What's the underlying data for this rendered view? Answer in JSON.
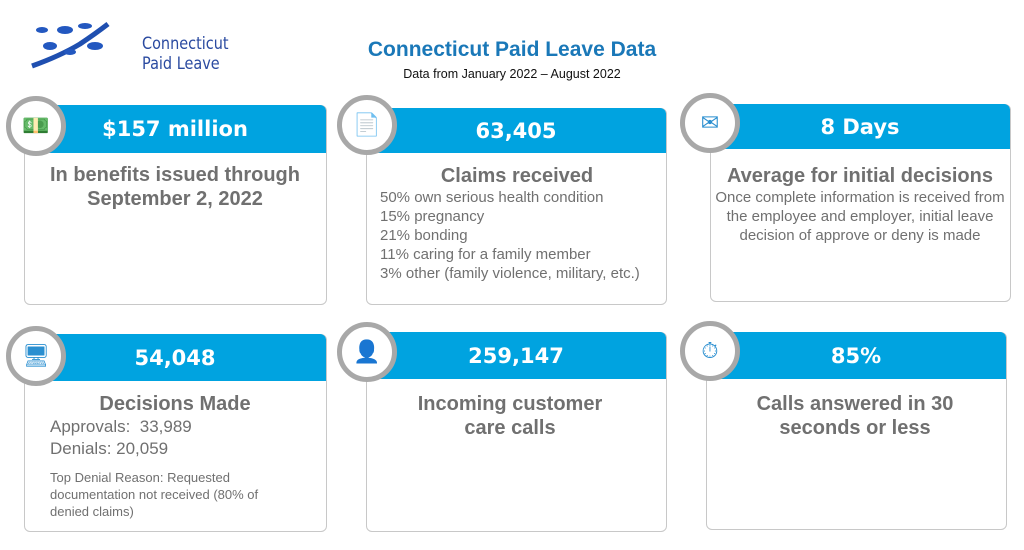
{
  "logo": {
    "line1": "Connecticut",
    "line2": "Paid Leave"
  },
  "title": "Connecticut Paid Leave Data",
  "subtitle": "Data from January 2022 – August 2022",
  "brand_color": "#00a3e0",
  "cards": [
    {
      "icon": "money-hand-icon",
      "value": "$157 million",
      "heading": "In benefits issued through September 2, 2022"
    },
    {
      "icon": "document-icon",
      "value": "63,405",
      "heading": "Claims received",
      "lines": [
        "50% own serious health condition",
        "15% pregnancy",
        "21% bonding",
        "11% caring for a family member",
        "3% other (family violence, military, etc.)"
      ]
    },
    {
      "icon": "envelope-icon",
      "value": "8 Days",
      "heading": "Average for initial decisions",
      "text": "Once complete information is received from the employee and employer, initial leave decision of approve or deny is made"
    },
    {
      "icon": "computer-check-icon",
      "value": "54,048",
      "heading": "Decisions Made",
      "lines": [
        "Approvals:  33,989",
        "Denials: 20,059"
      ],
      "note": "Top Denial Reason: Requested documentation not received (80% of denied claims)"
    },
    {
      "icon": "person-headset-icon",
      "value": "259,147",
      "heading": "Incoming customer care calls"
    },
    {
      "icon": "stopwatch-icon",
      "value": "85%",
      "heading": "Calls answered in 30 seconds or less"
    }
  ]
}
